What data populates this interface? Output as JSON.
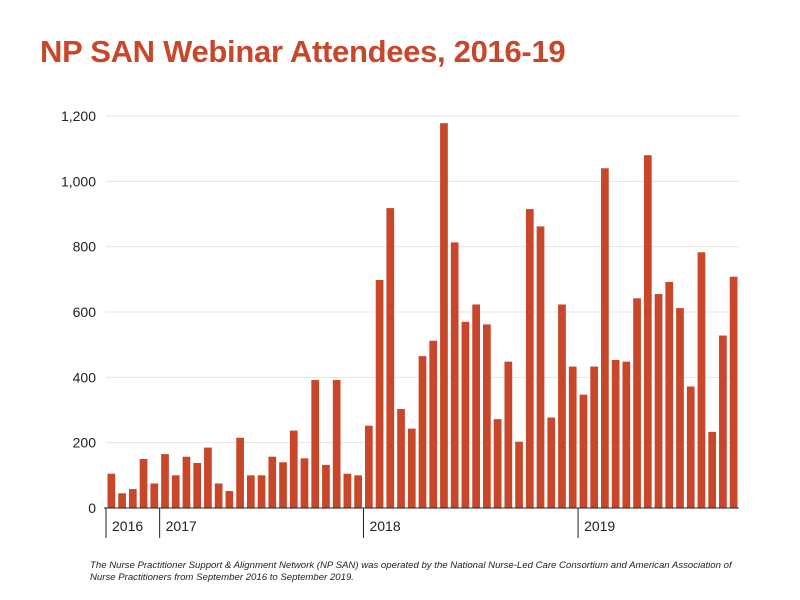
{
  "title": "NP SAN Webinar Attendees, 2016-19",
  "footnote": "The Nurse Practitioner Support & Alignment Network (NP SAN) was operated by the National Nurse-Led Care Consortium and American Association of Nurse Practitioners from September 2016 to September 2019.",
  "colors": {
    "title": "#c8472a",
    "bar": "#c8472a",
    "grid": "#e6e6e6",
    "axis": "#222222",
    "tick_text": "#222222"
  },
  "chart_data": {
    "type": "bar",
    "title": "NP SAN Webinar Attendees, 2016-19",
    "xlabel": "",
    "ylabel": "",
    "ylim": [
      0,
      1200
    ],
    "yticks": [
      0,
      200,
      400,
      600,
      800,
      1000,
      1200
    ],
    "ytick_labels": [
      "0",
      "200",
      "400",
      "600",
      "800",
      "1,000",
      "1,200"
    ],
    "grid": true,
    "year_labels": [
      {
        "label": "2016",
        "start_index": 0
      },
      {
        "label": "2017",
        "start_index": 5
      },
      {
        "label": "2018",
        "start_index": 24
      },
      {
        "label": "2019",
        "start_index": 44
      }
    ],
    "values": [
      105,
      45,
      58,
      150,
      75,
      165,
      100,
      157,
      138,
      185,
      75,
      52,
      215,
      100,
      100,
      157,
      140,
      237,
      152,
      392,
      132,
      392,
      105,
      100,
      252,
      698,
      918,
      303,
      243,
      465,
      512,
      1178,
      813,
      570,
      623,
      562,
      272,
      448,
      203,
      915,
      862,
      277,
      623,
      433,
      347,
      433,
      1040,
      453,
      448,
      642,
      1080,
      655,
      692,
      612,
      372,
      783,
      233,
      528,
      708
    ]
  }
}
